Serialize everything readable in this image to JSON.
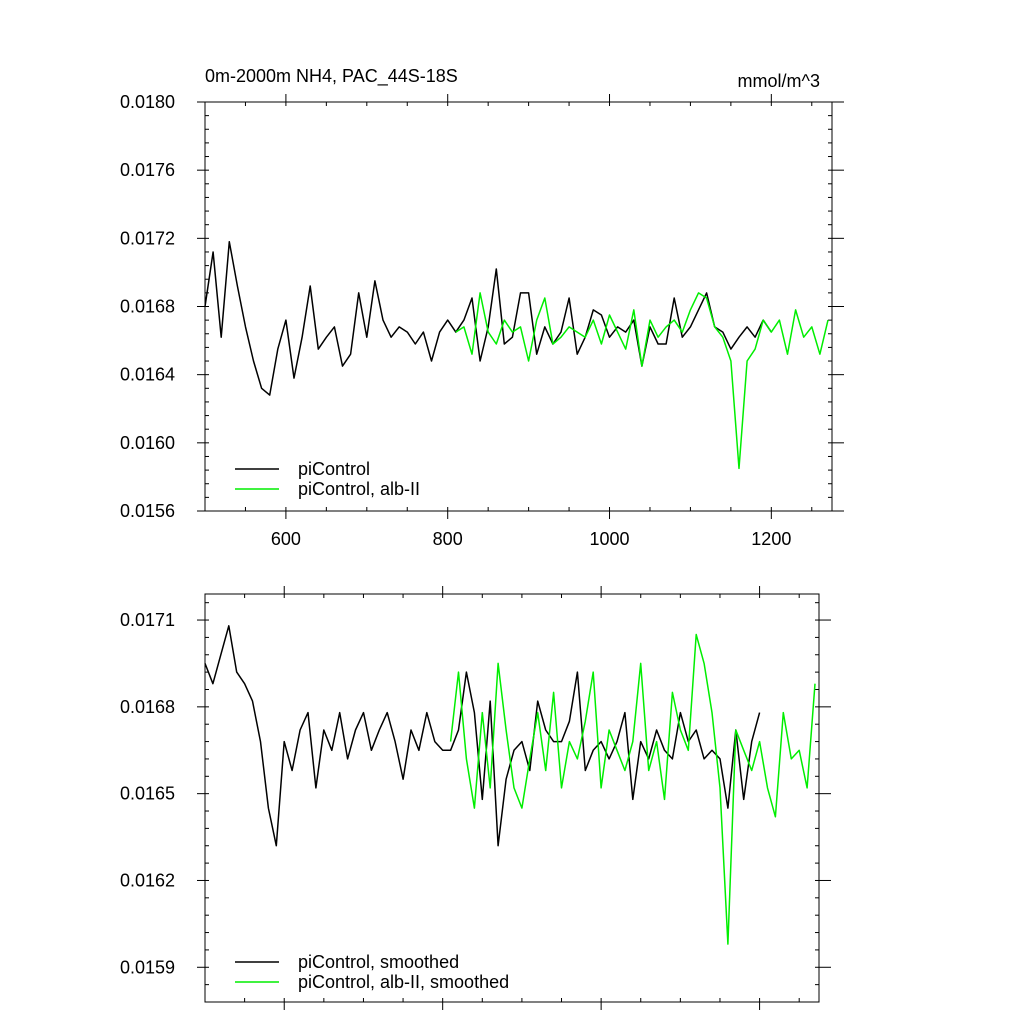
{
  "chart_data": [
    {
      "type": "line",
      "title": "0m-2000m NH4, PAC_44S-18S",
      "units": "mmol/m^3",
      "xlim": [
        500,
        1275
      ],
      "ylim": [
        0.0156,
        0.018
      ],
      "x_ticks": [
        600,
        800,
        1000,
        1200
      ],
      "x_tick_labels": [
        "600",
        "800",
        "1000",
        "1200"
      ],
      "y_ticks": [
        0.0156,
        0.016,
        0.0164,
        0.0168,
        0.0172,
        0.0176,
        0.018
      ],
      "y_tick_labels": [
        "0.0156",
        "0.0160",
        "0.0164",
        "0.0168",
        "0.0172",
        "0.0176",
        "0.0180"
      ],
      "legend_placement": "bottom-left",
      "series": [
        {
          "name": "piControl",
          "color": "#000000",
          "x": [
            500,
            510,
            520,
            530,
            540,
            550,
            560,
            570,
            580,
            590,
            600,
            610,
            620,
            630,
            640,
            650,
            660,
            670,
            680,
            690,
            700,
            710,
            720,
            730,
            740,
            750,
            760,
            770,
            780,
            790,
            800,
            810,
            820,
            830,
            840,
            850,
            860,
            870,
            880,
            890,
            900,
            910,
            920,
            930,
            940,
            950,
            960,
            970,
            980,
            990,
            1000,
            1010,
            1020,
            1030,
            1040,
            1050,
            1060,
            1070,
            1080,
            1090,
            1100,
            1110,
            1120,
            1130,
            1140,
            1150,
            1160,
            1170,
            1180,
            1190,
            1200
          ],
          "y": [
            0.0168,
            0.01712,
            0.01662,
            0.01718,
            0.01692,
            0.01668,
            0.01648,
            0.01632,
            0.01628,
            0.01655,
            0.01672,
            0.01638,
            0.01662,
            0.01692,
            0.01655,
            0.01662,
            0.01668,
            0.01645,
            0.01652,
            0.01688,
            0.01662,
            0.01695,
            0.01672,
            0.01662,
            0.01668,
            0.01665,
            0.01658,
            0.01665,
            0.01648,
            0.01665,
            0.01672,
            0.01665,
            0.01672,
            0.01685,
            0.01648,
            0.01668,
            0.01702,
            0.01658,
            0.01662,
            0.01688,
            0.01688,
            0.01652,
            0.01668,
            0.01658,
            0.01665,
            0.01685,
            0.01652,
            0.01662,
            0.01678,
            0.01675,
            0.01662,
            0.01668,
            0.01665,
            0.01672,
            0.01645,
            0.01668,
            0.01658,
            0.01658,
            0.01685,
            0.01662,
            0.01668,
            0.01678,
            0.01688,
            0.01668,
            0.01665,
            0.01655,
            0.01662,
            0.01668,
            0.01662,
            0.01672,
            0.01665
          ]
        },
        {
          "name": "piControl, alb-II",
          "color": "#00ee00",
          "x": [
            810,
            820,
            830,
            840,
            850,
            860,
            870,
            880,
            890,
            900,
            910,
            920,
            930,
            940,
            950,
            960,
            970,
            980,
            990,
            1000,
            1010,
            1020,
            1030,
            1040,
            1050,
            1060,
            1070,
            1080,
            1090,
            1100,
            1110,
            1120,
            1130,
            1140,
            1150,
            1160,
            1170,
            1180,
            1190,
            1200,
            1210,
            1220,
            1230,
            1240,
            1250,
            1260,
            1270
          ],
          "y": [
            0.01665,
            0.01668,
            0.01652,
            0.01688,
            0.01665,
            0.01658,
            0.01672,
            0.01665,
            0.01668,
            0.01648,
            0.01672,
            0.01685,
            0.01658,
            0.01662,
            0.01668,
            0.01665,
            0.01662,
            0.01672,
            0.01658,
            0.01675,
            0.01665,
            0.01655,
            0.01678,
            0.01645,
            0.01672,
            0.01662,
            0.01668,
            0.01672,
            0.01665,
            0.01678,
            0.01688,
            0.01685,
            0.01668,
            0.01662,
            0.01648,
            0.01585,
            0.01648,
            0.01655,
            0.01672,
            0.01665,
            0.01672,
            0.01652,
            0.01678,
            0.01662,
            0.01668,
            0.01652,
            0.01672
          ]
        }
      ]
    },
    {
      "type": "line",
      "title": "",
      "xlim": [
        500,
        1275
      ],
      "ylim": [
        0.01578,
        0.01719
      ],
      "x_ticks": [
        600,
        800,
        1000,
        1200
      ],
      "x_tick_labels": [],
      "y_ticks": [
        0.0159,
        0.0162,
        0.0165,
        0.0168,
        0.0171
      ],
      "y_tick_labels": [
        "0.0159",
        "0.0162",
        "0.0165",
        "0.0168",
        "0.0171"
      ],
      "legend_placement": "bottom-left",
      "series": [
        {
          "name": "piControl, smoothed",
          "color": "#000000",
          "x": [
            500,
            510,
            520,
            530,
            540,
            550,
            560,
            570,
            580,
            590,
            600,
            610,
            620,
            630,
            640,
            650,
            660,
            670,
            680,
            690,
            700,
            710,
            720,
            730,
            740,
            750,
            760,
            770,
            780,
            790,
            800,
            810,
            820,
            830,
            840,
            850,
            860,
            870,
            880,
            890,
            900,
            910,
            920,
            930,
            940,
            950,
            960,
            970,
            980,
            990,
            1000,
            1010,
            1020,
            1030,
            1040,
            1050,
            1060,
            1070,
            1080,
            1090,
            1100,
            1110,
            1120,
            1130,
            1140,
            1150,
            1160,
            1170,
            1180,
            1190,
            1200
          ],
          "y": [
            0.01695,
            0.01688,
            0.01698,
            0.01708,
            0.01692,
            0.01688,
            0.01682,
            0.01668,
            0.01645,
            0.01632,
            0.01668,
            0.01658,
            0.01672,
            0.01678,
            0.01652,
            0.01672,
            0.01665,
            0.01678,
            0.01662,
            0.01672,
            0.01678,
            0.01665,
            0.01672,
            0.01678,
            0.01668,
            0.01655,
            0.01672,
            0.01665,
            0.01678,
            0.01668,
            0.01665,
            0.01665,
            0.01672,
            0.01692,
            0.01678,
            0.01648,
            0.01682,
            0.01632,
            0.01655,
            0.01665,
            0.01668,
            0.01658,
            0.01682,
            0.01672,
            0.01668,
            0.01668,
            0.01675,
            0.01692,
            0.01658,
            0.01665,
            0.01668,
            0.01662,
            0.01668,
            0.01678,
            0.01648,
            0.01668,
            0.01662,
            0.01672,
            0.01665,
            0.01662,
            0.01678,
            0.01668,
            0.01672,
            0.01662,
            0.01665,
            0.01662,
            0.01645,
            0.01672,
            0.01648,
            0.01668,
            0.01678
          ]
        },
        {
          "name": "piControl, alb-II, smoothed",
          "color": "#00ee00",
          "x": [
            810,
            820,
            830,
            840,
            850,
            860,
            870,
            880,
            890,
            900,
            910,
            920,
            930,
            940,
            950,
            960,
            970,
            980,
            990,
            1000,
            1010,
            1020,
            1030,
            1040,
            1050,
            1060,
            1070,
            1080,
            1090,
            1100,
            1110,
            1120,
            1130,
            1140,
            1150,
            1160,
            1170,
            1180,
            1190,
            1200,
            1210,
            1220,
            1230,
            1240,
            1250,
            1260,
            1270
          ],
          "y": [
            0.01668,
            0.01692,
            0.01662,
            0.01645,
            0.01678,
            0.01652,
            0.01695,
            0.01672,
            0.01652,
            0.01645,
            0.01662,
            0.01678,
            0.01658,
            0.01685,
            0.01652,
            0.01668,
            0.01662,
            0.01675,
            0.01692,
            0.01652,
            0.01672,
            0.01665,
            0.01658,
            0.01668,
            0.01695,
            0.01658,
            0.01668,
            0.01648,
            0.01685,
            0.01672,
            0.01665,
            0.01705,
            0.01695,
            0.01678,
            0.01652,
            0.01598,
            0.01672,
            0.01665,
            0.01658,
            0.01668,
            0.01652,
            0.01642,
            0.01678,
            0.01662,
            0.01665,
            0.01652,
            0.01688
          ]
        }
      ]
    }
  ]
}
